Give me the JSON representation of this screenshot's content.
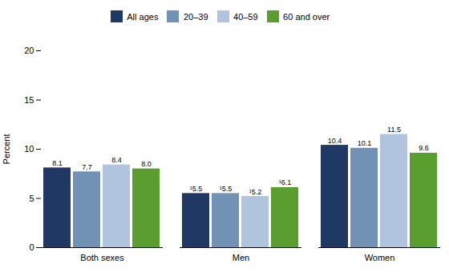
{
  "chart_data": {
    "type": "bar",
    "categories": [
      "Both sexes",
      "Men",
      "Women"
    ],
    "series": [
      {
        "name": "All ages",
        "color": "#1f3864",
        "values": [
          8.1,
          5.5,
          10.4
        ],
        "value_labels": [
          "8.1",
          "¹5.5",
          "10.4"
        ]
      },
      {
        "name": "20–39",
        "color": "#7191b5",
        "values": [
          7.7,
          5.5,
          10.1
        ],
        "value_labels": [
          "7.7",
          "¹5.5",
          "10.1"
        ]
      },
      {
        "name": "40–59",
        "color": "#b0c4de",
        "values": [
          8.4,
          5.2,
          11.5
        ],
        "value_labels": [
          "8.4",
          "¹5.2",
          "11.5"
        ]
      },
      {
        "name": "60 and over",
        "color": "#5a9e2f",
        "values": [
          8.0,
          6.1,
          9.6
        ],
        "value_labels": [
          "8.0",
          "¹6.1",
          "9.6"
        ]
      }
    ],
    "ylabel": "Percent",
    "ylim": [
      0,
      20
    ],
    "yticks": [
      0,
      5,
      10,
      15,
      20
    ],
    "grid": false,
    "legend": "top",
    "data_labels": true
  }
}
